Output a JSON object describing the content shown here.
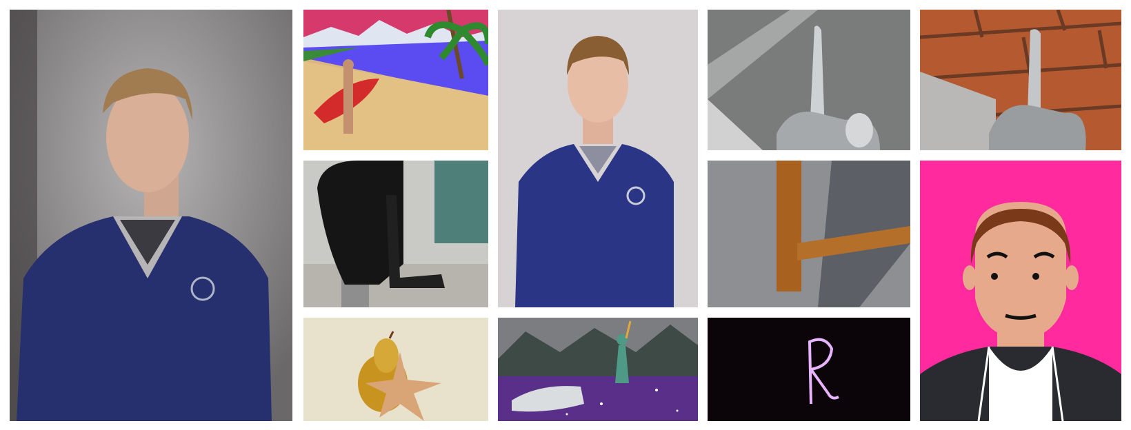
{
  "gallery": {
    "tiles": [
      {
        "id": "portrait-dark",
        "icon": "portrait-photo"
      },
      {
        "id": "beach-surfer",
        "icon": "collage-photo"
      },
      {
        "id": "portrait-light",
        "icon": "portrait-photo"
      },
      {
        "id": "faucet-grey",
        "icon": "faucet-photo"
      },
      {
        "id": "faucet-brick",
        "icon": "faucet-photo"
      },
      {
        "id": "black-fountain",
        "icon": "fountain-photo"
      },
      {
        "id": "table-leg",
        "icon": "furniture-photo"
      },
      {
        "id": "avatar-cartoon",
        "icon": "avatar-illustration"
      },
      {
        "id": "pear-starfish",
        "icon": "still-life-photo"
      },
      {
        "id": "space-collage",
        "icon": "collage-photo"
      },
      {
        "id": "light-painting",
        "icon": "light-painting-photo"
      }
    ]
  },
  "colors": {
    "sweater": "#2a3585",
    "avatar_bg": "#ff2a9d",
    "skin": "#e6a98c",
    "hair": "#7a3a1a"
  }
}
